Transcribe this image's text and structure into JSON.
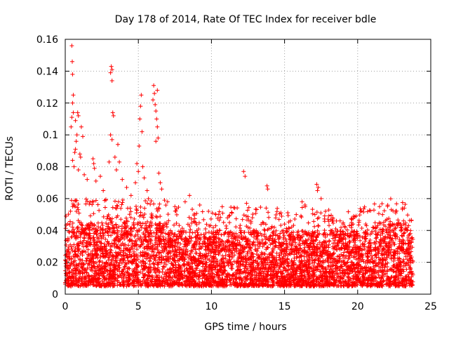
{
  "chart_data": {
    "type": "scatter",
    "title": "Day 178 of 2014, Rate Of TEC Index for receiver bdle",
    "xlabel": "GPS time / hours",
    "ylabel": "ROTI / TECUs",
    "xlim": [
      0,
      25
    ],
    "ylim": [
      0,
      0.16
    ],
    "xticks": [
      "0",
      "5",
      "10",
      "15",
      "20",
      "25"
    ],
    "yticks": [
      "0",
      "0.02",
      "0.04",
      "0.06",
      "0.08",
      "0.1",
      "0.12",
      "0.14",
      "0.16"
    ],
    "grid": true,
    "marker": "+",
    "color": "#ff0000",
    "series": [
      {
        "name": "ROTI",
        "points": [
          [
            0.45,
            0.156
          ],
          [
            0.48,
            0.146
          ],
          [
            0.5,
            0.138
          ],
          [
            0.55,
            0.125
          ],
          [
            0.5,
            0.12
          ],
          [
            0.55,
            0.114
          ],
          [
            0.45,
            0.111
          ],
          [
            0.4,
            0.105
          ],
          [
            0.7,
            0.109
          ],
          [
            0.85,
            0.114
          ],
          [
            0.9,
            0.112
          ],
          [
            0.8,
            0.1
          ],
          [
            0.75,
            0.096
          ],
          [
            0.7,
            0.091
          ],
          [
            0.65,
            0.089
          ],
          [
            1.1,
            0.105
          ],
          [
            1.2,
            0.099
          ],
          [
            1.0,
            0.088
          ],
          [
            1.05,
            0.086
          ],
          [
            0.6,
            0.08
          ],
          [
            0.5,
            0.084
          ],
          [
            0.9,
            0.078
          ],
          [
            1.3,
            0.075
          ],
          [
            1.5,
            0.072
          ],
          [
            1.9,
            0.085
          ],
          [
            1.95,
            0.082
          ],
          [
            2.0,
            0.079
          ],
          [
            2.1,
            0.071
          ],
          [
            2.4,
            0.074
          ],
          [
            2.6,
            0.065
          ],
          [
            3.0,
            0.083
          ],
          [
            3.1,
            0.1
          ],
          [
            3.2,
            0.097
          ],
          [
            3.15,
            0.143
          ],
          [
            3.2,
            0.141
          ],
          [
            3.1,
            0.139
          ],
          [
            3.2,
            0.134
          ],
          [
            3.25,
            0.114
          ],
          [
            3.3,
            0.112
          ],
          [
            3.4,
            0.086
          ],
          [
            3.6,
            0.094
          ],
          [
            3.7,
            0.083
          ],
          [
            3.5,
            0.078
          ],
          [
            3.9,
            0.072
          ],
          [
            4.2,
            0.067
          ],
          [
            4.5,
            0.062
          ],
          [
            4.8,
            0.07
          ],
          [
            4.9,
            0.082
          ],
          [
            5.0,
            0.077
          ],
          [
            5.05,
            0.093
          ],
          [
            5.1,
            0.11
          ],
          [
            5.15,
            0.118
          ],
          [
            5.2,
            0.125
          ],
          [
            5.25,
            0.102
          ],
          [
            5.3,
            0.08
          ],
          [
            5.4,
            0.073
          ],
          [
            5.6,
            0.065
          ],
          [
            6.0,
            0.122
          ],
          [
            6.05,
            0.131
          ],
          [
            6.1,
            0.126
          ],
          [
            6.15,
            0.119
          ],
          [
            6.2,
            0.115
          ],
          [
            6.3,
            0.128
          ],
          [
            6.25,
            0.11
          ],
          [
            6.3,
            0.105
          ],
          [
            6.35,
            0.098
          ],
          [
            6.2,
            0.096
          ],
          [
            6.4,
            0.076
          ],
          [
            6.5,
            0.07
          ],
          [
            6.6,
            0.066
          ],
          [
            7.0,
            0.058
          ],
          [
            7.5,
            0.055
          ],
          [
            8.2,
            0.058
          ],
          [
            8.5,
            0.062
          ],
          [
            9.2,
            0.056
          ],
          [
            9.8,
            0.052
          ],
          [
            10.5,
            0.05
          ],
          [
            11.2,
            0.049
          ],
          [
            12.2,
            0.077
          ],
          [
            12.3,
            0.074
          ],
          [
            12.4,
            0.057
          ],
          [
            12.8,
            0.048
          ],
          [
            13.5,
            0.045
          ],
          [
            13.8,
            0.068
          ],
          [
            13.85,
            0.066
          ],
          [
            14.3,
            0.042
          ],
          [
            15.0,
            0.044
          ],
          [
            15.4,
            0.046
          ],
          [
            15.8,
            0.05
          ],
          [
            16.2,
            0.058
          ],
          [
            16.4,
            0.056
          ],
          [
            17.2,
            0.069
          ],
          [
            17.3,
            0.067
          ],
          [
            17.25,
            0.065
          ],
          [
            17.5,
            0.06
          ],
          [
            17.8,
            0.052
          ],
          [
            18.3,
            0.048
          ],
          [
            18.8,
            0.046
          ],
          [
            19.0,
            0.044
          ],
          [
            19.6,
            0.047
          ],
          [
            20.2,
            0.052
          ],
          [
            20.6,
            0.043
          ],
          [
            21.5,
            0.055
          ],
          [
            21.7,
            0.05
          ],
          [
            22.0,
            0.047
          ],
          [
            22.3,
            0.053
          ],
          [
            22.6,
            0.051
          ],
          [
            23.0,
            0.042
          ],
          [
            23.4,
            0.04
          ],
          [
            23.6,
            0.038
          ]
        ]
      }
    ],
    "dense_band": {
      "description": "dense continuous band of measurements",
      "x_range": [
        0,
        23.8
      ],
      "typical_min": 0.005,
      "typical_max": 0.04
    }
  }
}
